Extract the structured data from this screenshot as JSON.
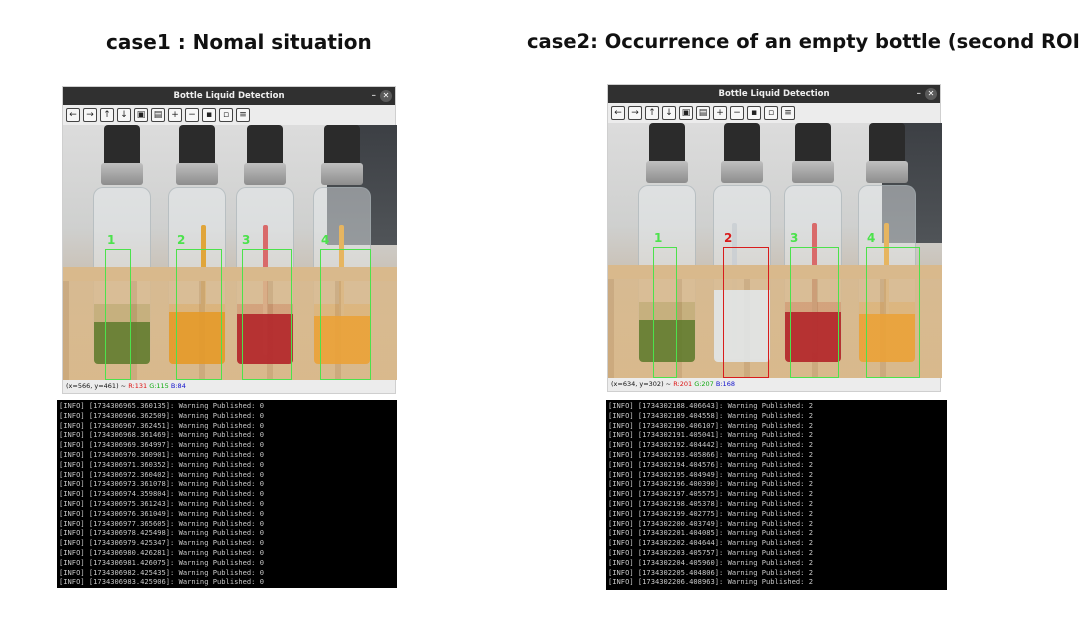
{
  "case1": {
    "title": "case1 : Nomal situation",
    "window_title": "Bottle Liquid Detection",
    "roi_labels": [
      "1",
      "2",
      "3",
      "4"
    ],
    "status": {
      "coords": "(x=566, y=461) ~ ",
      "r": "R:131",
      "g": "G:115",
      "b": "B:84"
    },
    "log": [
      "[INFO] [1734306965.360135]: Warning Published: 0",
      "[INFO] [1734306966.362509]: Warning Published: 0",
      "[INFO] [1734306967.362451]: Warning Published: 0",
      "[INFO] [1734306968.361469]: Warning Published: 0",
      "[INFO] [1734306969.364997]: Warning Published: 0",
      "[INFO] [1734306970.360901]: Warning Published: 0",
      "[INFO] [1734306971.360352]: Warning Published: 0",
      "[INFO] [1734306972.360402]: Warning Published: 0",
      "[INFO] [1734306973.361078]: Warning Published: 0",
      "[INFO] [1734306974.359804]: Warning Published: 0",
      "[INFO] [1734306975.361243]: Warning Published: 0",
      "[INFO] [1734306976.361049]: Warning Published: 0",
      "[INFO] [1734306977.365605]: Warning Published: 0",
      "[INFO] [1734306978.425498]: Warning Published: 0",
      "[INFO] [1734306979.425347]: Warning Published: 0",
      "[INFO] [1734306980.426281]: Warning Published: 0",
      "[INFO] [1734306981.426075]: Warning Published: 0",
      "[INFO] [1734306982.425435]: Warning Published: 0",
      "[INFO] [1734306983.425906]: Warning Published: 0"
    ]
  },
  "case2": {
    "title": "case2: Occurrence of an empty bottle (second ROI)",
    "window_title": "Bottle Liquid Detection",
    "roi_labels": [
      "1",
      "2",
      "3",
      "4"
    ],
    "status": {
      "coords": "(x=634, y=302) ~ ",
      "r": "R:201",
      "g": "G:207",
      "b": "B:168"
    },
    "log": [
      "[INFO] [1734302188.406643]: Warning Published: 2",
      "[INFO] [1734302189.404558]: Warning Published: 2",
      "[INFO] [1734302190.406107]: Warning Published: 2",
      "[INFO] [1734302191.405041]: Warning Published: 2",
      "[INFO] [1734302192.404442]: Warning Published: 2",
      "[INFO] [1734302193.405866]: Warning Published: 2",
      "[INFO] [1734302194.404576]: Warning Published: 2",
      "[INFO] [1734302195.404949]: Warning Published: 2",
      "[INFO] [1734302196.400390]: Warning Published: 2",
      "[INFO] [1734302197.405575]: Warning Published: 2",
      "[INFO] [1734302198.405378]: Warning Published: 2",
      "[INFO] [1734302199.402775]: Warning Published: 2",
      "[INFO] [1734302200.403749]: Warning Published: 2",
      "[INFO] [1734302201.404085]: Warning Published: 2",
      "[INFO] [1734302202.404644]: Warning Published: 2",
      "[INFO] [1734302203.405757]: Warning Published: 2",
      "[INFO] [1734302204.405960]: Warning Published: 2",
      "[INFO] [1734302205.404806]: Warning Published: 2",
      "[INFO] [1734302206.408963]: Warning Published: 2"
    ]
  },
  "toolbar_icons": [
    "arrow-left-icon",
    "arrow-right-icon",
    "arrow-up-icon",
    "arrow-down-icon",
    "fit-icon",
    "save-image-icon",
    "zoom-in-icon",
    "zoom-out-icon",
    "save-icon",
    "copy-icon",
    "properties-icon"
  ],
  "colors": {
    "roi_ok": "#4ce24c",
    "roi_warning": "#d81c1c",
    "terminal_bg": "#000000",
    "titlebar_bg": "#303030"
  }
}
